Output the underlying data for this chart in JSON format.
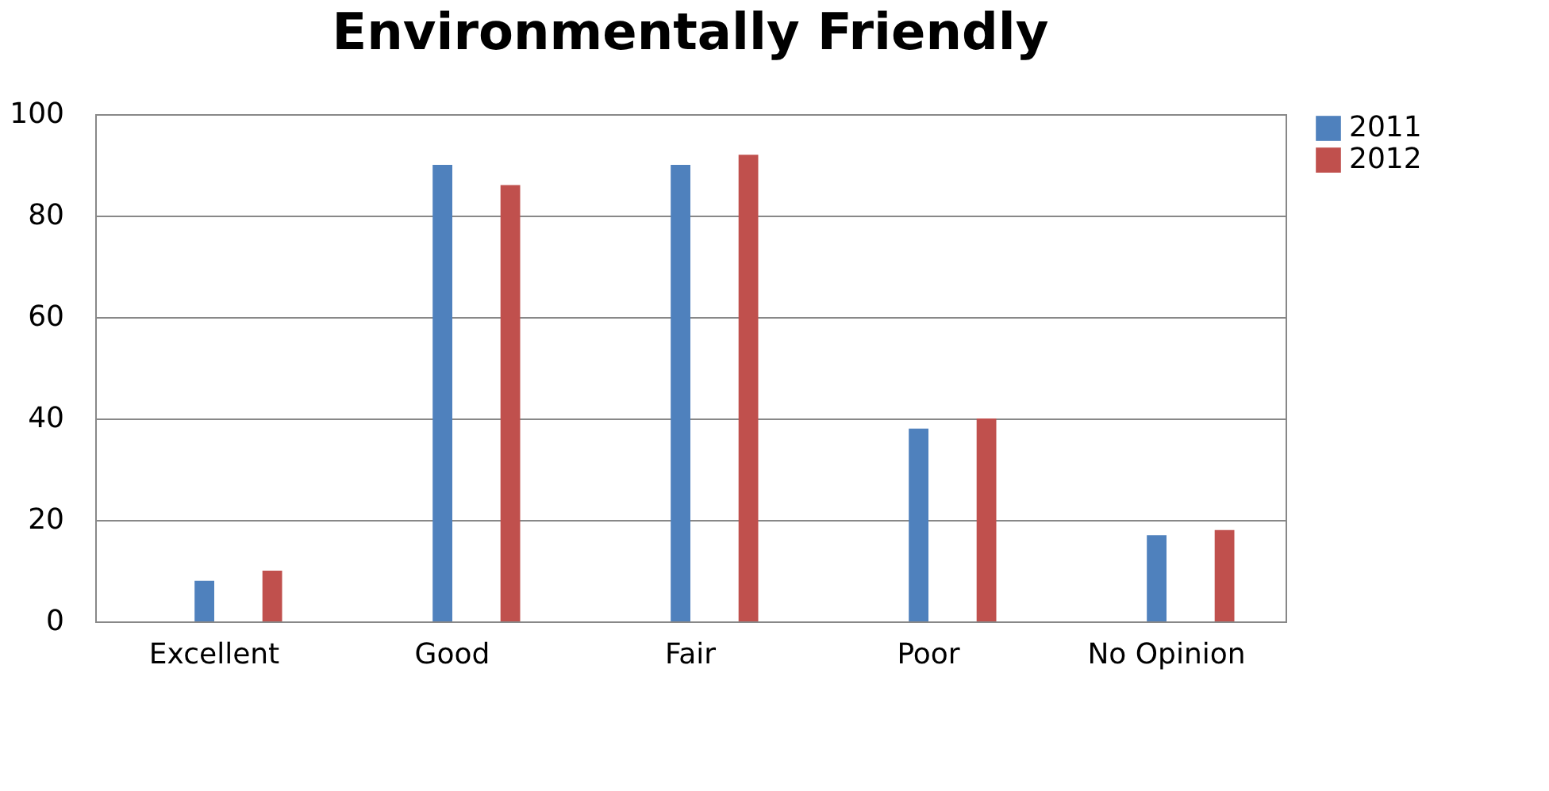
{
  "chart_data": {
    "type": "bar",
    "title": "Environmentally Friendly",
    "categories": [
      "Excellent",
      "Good",
      "Fair",
      "Poor",
      "No Opinion"
    ],
    "series": [
      {
        "name": "2011",
        "color": "#4f81bd",
        "values": [
          8,
          90,
          90,
          38,
          17
        ]
      },
      {
        "name": "2012",
        "color": "#c0504d",
        "values": [
          10,
          86,
          92,
          40,
          18
        ]
      }
    ],
    "ylim": [
      0,
      100
    ],
    "yticks": [
      0,
      20,
      40,
      60,
      80,
      100
    ],
    "grid": "y",
    "legend": "right"
  }
}
